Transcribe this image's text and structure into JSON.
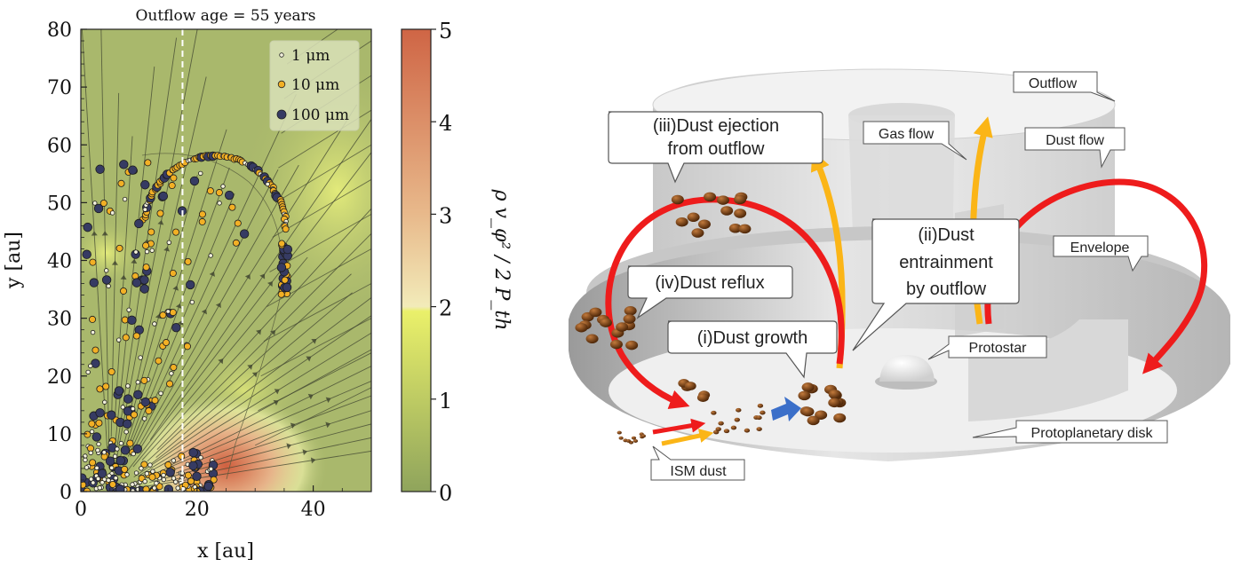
{
  "plot": {
    "title": "Outflow age = 55 years",
    "xlabel": "x [au]",
    "ylabel": "y [au]",
    "x_ticks": [
      "0",
      "20",
      "40"
    ],
    "y_ticks": [
      "0",
      "10",
      "20",
      "30",
      "40",
      "50",
      "60",
      "70",
      "80"
    ],
    "colorbar_ticks": [
      "0",
      "1",
      "2",
      "3",
      "4",
      "5"
    ],
    "colorbar_label": "ρ v_φ² / 2 P_th",
    "legend": [
      "1 μm",
      "10 μm",
      "100 μm"
    ],
    "colors": {
      "small": "#f3f1dc",
      "medium": "#f2b025",
      "large": "#363b63",
      "background": "#a8b86c",
      "dashed_line": "#ffffff"
    }
  },
  "chart_data": {
    "type": "scatter",
    "title": "Outflow age = 55 years",
    "xlabel": "x [au]",
    "ylabel": "y [au]",
    "xlim": [
      0,
      50
    ],
    "ylim": [
      0,
      80
    ],
    "colorbar": {
      "range": [
        0,
        5
      ],
      "label": "ρ v_φ² / 2 P_th"
    },
    "dashed_vertical_line_x": 17.5,
    "series": [
      {
        "name": "1 μm",
        "color": "#f3f1dc"
      },
      {
        "name": "10 μm",
        "color": "#f2b025"
      },
      {
        "name": "100 μm",
        "color": "#363b63"
      }
    ]
  },
  "diagram": {
    "labels": {
      "outflow": "Outflow",
      "gas_flow": "Gas flow",
      "dust_flow": "Dust flow",
      "envelope": "Envelope",
      "protostar": "Protostar",
      "disk": "Protoplanetary disk",
      "ism_dust": "ISM dust"
    },
    "callouts": {
      "ejection_l1": "(iii)Dust ejection",
      "ejection_l2": "from outflow",
      "entrain_l1": "(ii)Dust",
      "entrain_l2": "entrainment",
      "entrain_l3": "by outflow",
      "reflux": "(iv)Dust reflux",
      "growth": "(i)Dust growth"
    },
    "colors": {
      "red_arrow": "#ee1c1c",
      "yellow_arrow": "#fbb517",
      "blue_arrow": "#3b6fc9",
      "dust": "#7a4219"
    }
  }
}
